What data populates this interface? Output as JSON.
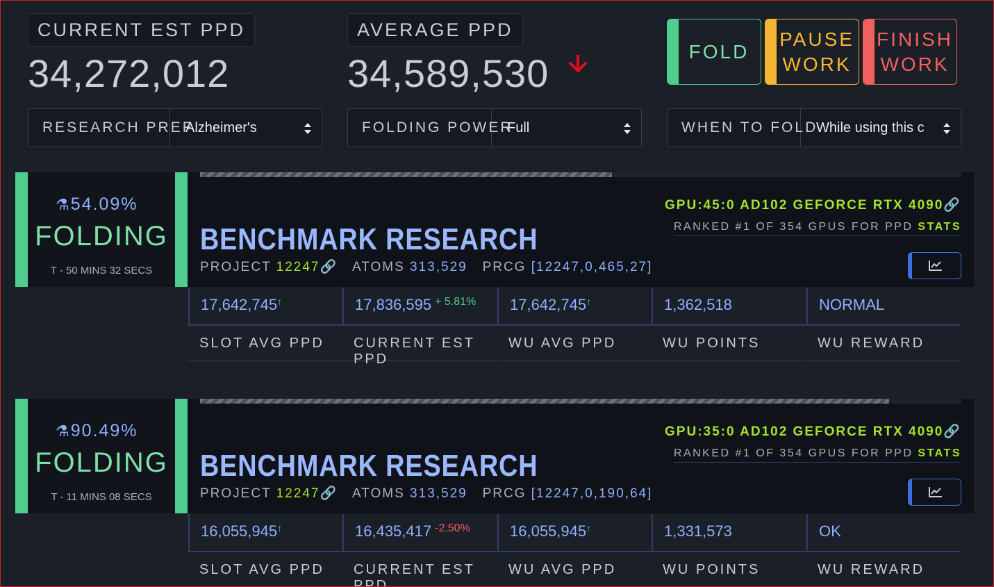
{
  "header": {
    "current_est_ppd": {
      "label": "CURRENT EST PPD",
      "value": "34,272,012"
    },
    "average_ppd": {
      "label": "AVERAGE PPD",
      "value": "34,589,530"
    },
    "buttons": [
      "FOLD",
      "PAUSE WORK",
      "FINISH WORK"
    ],
    "selects": [
      {
        "label": "RESEARCH PREF",
        "value": "Alzheimer's"
      },
      {
        "label": "FOLDING POWER",
        "value": "Full"
      },
      {
        "label": "WHEN TO FOLD",
        "value": "While using this c"
      }
    ]
  },
  "stat_labels": [
    "SLOT AVG PPD",
    "CURRENT EST PPD",
    "WU AVG PPD",
    "WU POINTS",
    "WU REWARD"
  ],
  "slots": [
    {
      "progress": 54.09,
      "progress_label": "54.09%",
      "status": "FOLDING",
      "eta": "T - 50 MINS 32 SECS",
      "title": "BENCHMARK RESEARCH",
      "project_label": "PROJECT",
      "project": "12247",
      "atoms_label": "ATOMS",
      "atoms": "313,529",
      "prcg_label": "PRCG",
      "prcg": "[12247,0,465,27]",
      "gpu": "GPU:45:0 AD102 GEFORCE RTX 4090",
      "rank": "RANKED #1 OF 354 GPUS FOR PPD",
      "stats_link": "STATS",
      "stats": [
        "17,642,745",
        "17,836,595",
        "17,642,745",
        "1,362,518",
        "NORMAL"
      ],
      "change": "+ 5.81%"
    },
    {
      "progress": 90.49,
      "progress_label": "90.49%",
      "status": "FOLDING",
      "eta": "T - 11 MINS 08 SECS",
      "title": "BENCHMARK RESEARCH",
      "project_label": "PROJECT",
      "project": "12247",
      "atoms_label": "ATOMS",
      "atoms": "313,529",
      "prcg_label": "PRCG",
      "prcg": "[12247,0,190,64]",
      "gpu": "GPU:35:0 AD102 GEFORCE RTX 4090",
      "rank": "RANKED #1 OF 354 GPUS FOR PPD",
      "stats_link": "STATS",
      "stats": [
        "16,055,945",
        "16,435,417",
        "16,055,945",
        "1,331,573",
        "OK"
      ],
      "change": "-2.50%"
    }
  ]
}
